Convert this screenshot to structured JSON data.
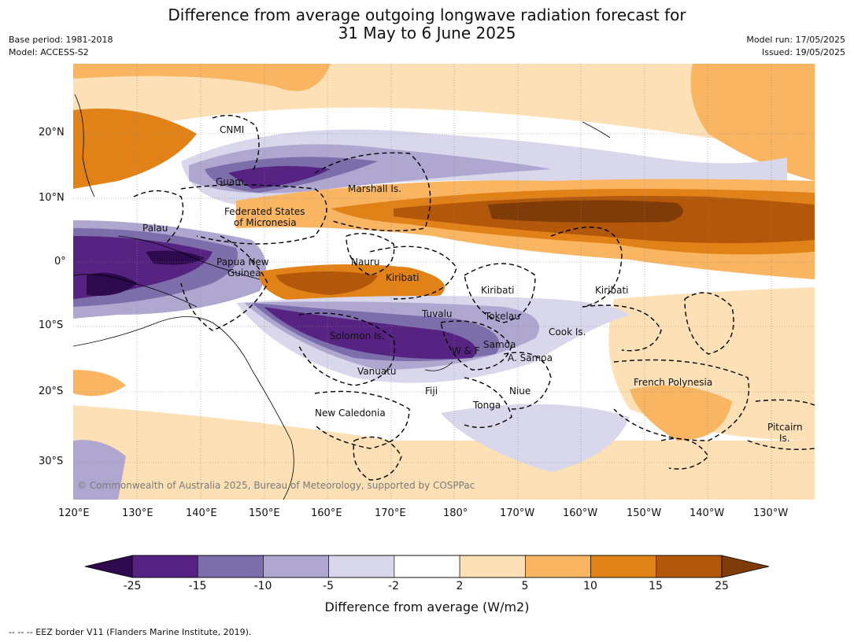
{
  "title_line1": "Difference from average outgoing longwave radiation forecast for",
  "title_line2": "31 May to 6 June 2025",
  "meta_left": {
    "base_period": "Base period: 1981-2018",
    "model": "Model: ACCESS-S2"
  },
  "meta_right": {
    "model_run": "Model run: 17/05/2025",
    "issued": "Issued: 19/05/2025"
  },
  "lon_labels": [
    "120°E",
    "130°E",
    "140°E",
    "150°E",
    "160°E",
    "170°E",
    "180°",
    "170°W",
    "160°W",
    "150°W",
    "140°W",
    "130°W"
  ],
  "lat_labels": [
    "20°N",
    "10°N",
    "0°",
    "10°S",
    "20°S",
    "30°S"
  ],
  "places": {
    "cnmi": "CNMI",
    "guam": "Guam",
    "marshall": "Marshall Is.",
    "fsm1": "Federated States",
    "fsm2": "of Micronesia",
    "palau": "Palau",
    "png1": "Papua New",
    "png2": "Guinea",
    "nauru": "Nauru",
    "kiribati1": "Kiribati",
    "kiribati2": "Kiribati",
    "kiribati3": "Kiribati",
    "tuvalu": "Tuvalu",
    "tokelau": "Tokelau",
    "solomon": "Solomon Is.",
    "wf": "W & F",
    "samoa": "Samoa",
    "asamoa": "A. Samoa",
    "cook": "Cook Is.",
    "vanuatu": "Vanuatu",
    "fiji": "Fiji",
    "niue": "Niue",
    "tonga": "Tonga",
    "newcal": "New Caledonia",
    "frpoly": "French Polynesia",
    "pitcairn1": "Pitcairn",
    "pitcairn2": "Is."
  },
  "copyright": "© Commonwealth of Australia 2025, Bureau of Meteorology, supported by COSPPac",
  "colorbar": {
    "title": "Difference from average (W/m2)",
    "ticks": [
      "-25",
      "-15",
      "-10",
      "-5",
      "-2",
      "2",
      "5",
      "10",
      "15",
      "25"
    ],
    "colors": [
      "#2d0a4e",
      "#562382",
      "#7c6dab",
      "#b0a7d1",
      "#d8d7eb",
      "#ffffff",
      "#fde0b5",
      "#f9b562",
      "#e08218",
      "#b3580b",
      "#7f3b08"
    ]
  },
  "footer": "--  --  -- EEZ border V11 (Flanders Marine Institute, 2019)."
}
